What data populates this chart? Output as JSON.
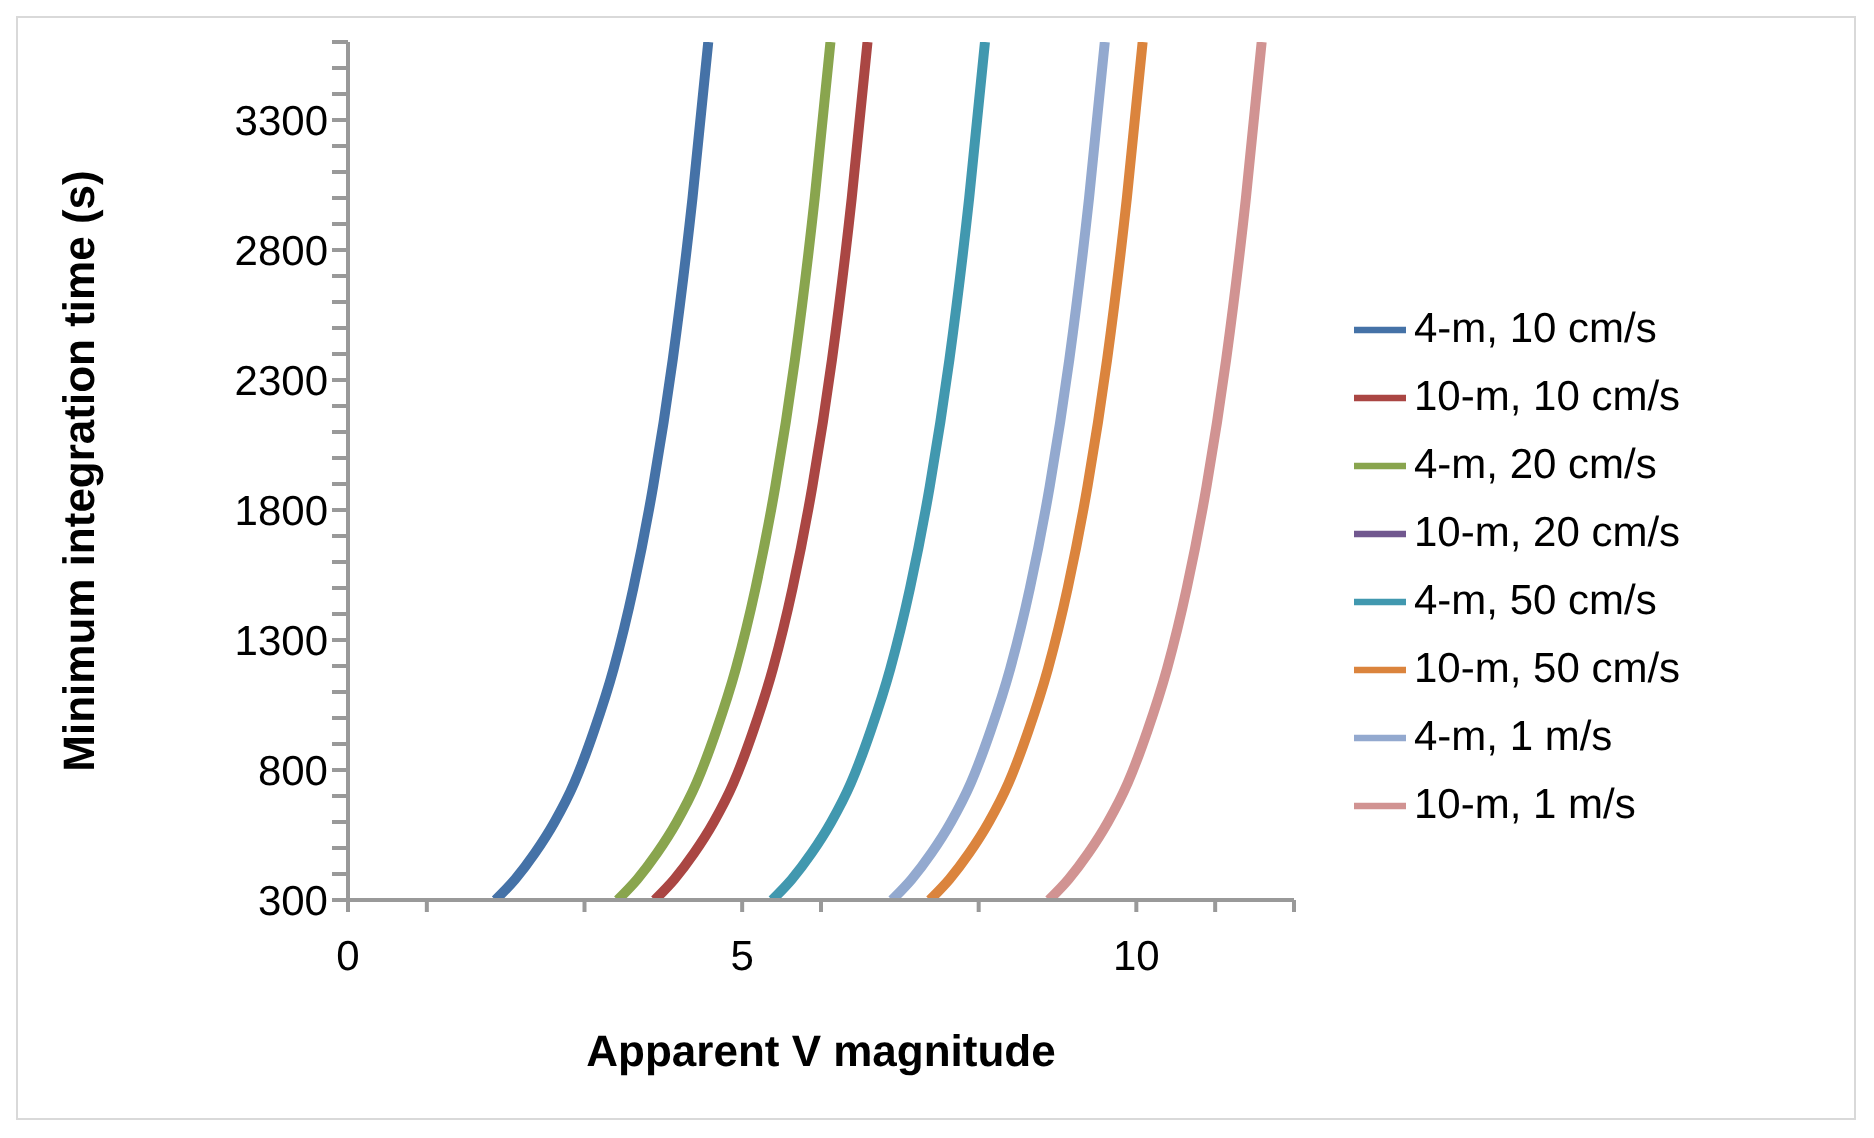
{
  "chart_data": {
    "type": "line",
    "xlabel": "Apparent V magnitude",
    "ylabel": "Minimum integration time (s)",
    "xlim": [
      0,
      12
    ],
    "xticks": [
      0,
      {
        "value": 1,
        "label": null
      },
      {
        "value": 3,
        "label": null
      },
      5,
      {
        "value": 6,
        "label": null
      },
      {
        "value": 8,
        "label": null
      },
      10,
      {
        "value": 11,
        "label": null
      },
      {
        "value": 12,
        "label": null
      }
    ],
    "ylim": [
      300,
      3600
    ],
    "yticks": [
      300,
      {
        "value": 400,
        "label": null
      },
      {
        "value": 500,
        "label": null
      },
      {
        "value": 600,
        "label": null
      },
      {
        "value": 700,
        "label": null
      },
      800,
      {
        "value": 900,
        "label": null
      },
      {
        "value": 1000,
        "label": null
      },
      {
        "value": 1100,
        "label": null
      },
      {
        "value": 1200,
        "label": null
      },
      1300,
      {
        "value": 1400,
        "label": null
      },
      {
        "value": 1500,
        "label": null
      },
      {
        "value": 1600,
        "label": null
      },
      {
        "value": 1700,
        "label": null
      },
      1800,
      {
        "value": 1900,
        "label": null
      },
      {
        "value": 2000,
        "label": null
      },
      {
        "value": 2100,
        "label": null
      },
      {
        "value": 2200,
        "label": null
      },
      2300,
      {
        "value": 2400,
        "label": null
      },
      {
        "value": 2500,
        "label": null
      },
      {
        "value": 2600,
        "label": null
      },
      {
        "value": 2700,
        "label": null
      },
      2800,
      {
        "value": 2900,
        "label": null
      },
      {
        "value": 3000,
        "label": null
      },
      {
        "value": 3100,
        "label": null
      },
      {
        "value": 3200,
        "label": null
      },
      3300,
      {
        "value": 3400,
        "label": null
      },
      {
        "value": 3500,
        "label": null
      },
      {
        "value": 3600,
        "label": null
      }
    ],
    "grid": false,
    "legend": "right",
    "marker": "none",
    "line_style": "solid",
    "series": [
      {
        "name": "4-m, 10 cm/s",
        "color": "#4572a7",
        "x": [
          1.87,
          2.12,
          2.37,
          2.62,
          2.87,
          3.12,
          3.37,
          3.62,
          3.87,
          4.12,
          4.37,
          4.57
        ],
        "values": [
          300,
          380,
          480,
          600,
          750,
          950,
          1190,
          1500,
          1890,
          2380,
          3000,
          3600
        ]
      },
      {
        "name": "10-m, 10 cm/s",
        "color": "#aa4643",
        "x": [
          3.89,
          4.14,
          4.39,
          4.64,
          4.89,
          5.14,
          5.39,
          5.64,
          5.89,
          6.14,
          6.39,
          6.59
        ],
        "values": [
          300,
          380,
          480,
          600,
          750,
          950,
          1190,
          1500,
          1890,
          2380,
          3000,
          3600
        ]
      },
      {
        "name": "4-m, 20 cm/s",
        "color": "#89a54e",
        "x": [
          3.42,
          3.67,
          3.92,
          4.17,
          4.42,
          4.67,
          4.92,
          5.17,
          5.42,
          5.67,
          5.92,
          6.12
        ],
        "values": [
          300,
          380,
          480,
          600,
          750,
          950,
          1190,
          1500,
          1890,
          2380,
          3000,
          3600
        ]
      },
      {
        "name": "10-m, 20 cm/s",
        "color": "#71588f",
        "values": [
          null,
          null,
          null,
          null,
          null,
          null,
          null,
          null,
          null,
          null,
          null,
          null
        ]
      },
      {
        "name": "4-m, 50 cm/s",
        "color": "#4198af",
        "x": [
          5.38,
          5.63,
          5.88,
          6.13,
          6.38,
          6.63,
          6.88,
          7.13,
          7.38,
          7.63,
          7.88,
          8.08
        ],
        "values": [
          300,
          380,
          480,
          600,
          750,
          950,
          1190,
          1500,
          1890,
          2380,
          3000,
          3600
        ]
      },
      {
        "name": "10-m, 50 cm/s",
        "color": "#db843d",
        "x": [
          7.38,
          7.63,
          7.88,
          8.13,
          8.38,
          8.63,
          8.88,
          9.13,
          9.38,
          9.63,
          9.88,
          10.08
        ],
        "values": [
          300,
          380,
          480,
          600,
          750,
          950,
          1190,
          1500,
          1890,
          2380,
          3000,
          3600
        ]
      },
      {
        "name": "4-m, 1 m/s",
        "color": "#93a9cf",
        "x": [
          6.9,
          7.15,
          7.4,
          7.65,
          7.9,
          8.15,
          8.4,
          8.65,
          8.9,
          9.15,
          9.4,
          9.6
        ],
        "values": [
          300,
          380,
          480,
          600,
          750,
          950,
          1190,
          1500,
          1890,
          2380,
          3000,
          3600
        ]
      },
      {
        "name": "10-m, 1 m/s",
        "color": "#d19392",
        "x": [
          8.89,
          9.14,
          9.39,
          9.64,
          9.89,
          10.14,
          10.39,
          10.64,
          10.89,
          11.14,
          11.39,
          11.59
        ],
        "values": [
          300,
          380,
          480,
          600,
          750,
          950,
          1190,
          1500,
          1890,
          2380,
          3000,
          3600
        ]
      }
    ]
  }
}
